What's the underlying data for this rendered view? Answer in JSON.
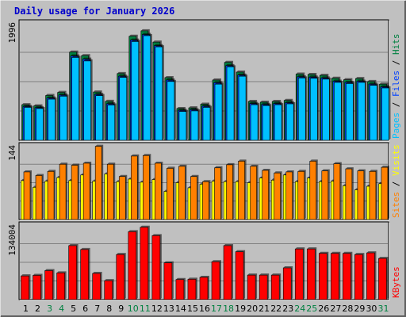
{
  "chart_data": {
    "type": "bar",
    "title": "Daily usage for January 2026",
    "categories": [
      "1",
      "2",
      "3",
      "4",
      "5",
      "6",
      "7",
      "8",
      "9",
      "10",
      "11",
      "12",
      "13",
      "14",
      "15",
      "16",
      "17",
      "18",
      "19",
      "20",
      "21",
      "22",
      "23",
      "24",
      "25",
      "26",
      "27",
      "28",
      "29",
      "30",
      "31"
    ],
    "weekend_days": [
      "3",
      "4",
      "10",
      "11",
      "17",
      "18",
      "24",
      "25",
      "31"
    ],
    "colors": {
      "hits": "#008040",
      "files": "#0040ff",
      "pages": "#00c0ff",
      "visits": "#ffff00",
      "sites": "#ff8000",
      "kbytes": "#ff0000",
      "weekday_label": "#000000",
      "weekend_label": "#008040",
      "plot_background": "#c0c0c0",
      "frame_background": "#c0c0c0",
      "gridline": "#808080",
      "title": "#0000cc"
    },
    "panels": [
      {
        "id": "usage",
        "max_label": "1996",
        "ylim": [
          0,
          1996
        ],
        "series": [
          {
            "name": "Hits",
            "values": [
              605,
              585,
              762,
              814,
              1500,
              1440,
              821,
              662,
              1135,
              1770,
              1862,
              1670,
              1066,
              540,
              551,
              614,
              1025,
              1325,
              1160,
              660,
              648,
              660,
              678,
              1126,
              1120,
              1105,
              1055,
              1030,
              1050,
              1000,
              955
            ]
          },
          {
            "name": "Files",
            "values": [
              575,
              555,
              720,
              770,
              1435,
              1380,
              780,
              622,
              1090,
              1705,
              1800,
              1610,
              1025,
              510,
              520,
              580,
              980,
              1270,
              1110,
              625,
              610,
              625,
              640,
              1080,
              1075,
              1060,
              1005,
              985,
              1005,
              955,
              910
            ]
          },
          {
            "name": "Pages",
            "values": [
              560,
              540,
              700,
              750,
              1410,
              1350,
              760,
              600,
              1070,
              1680,
              1780,
              1590,
              1000,
              490,
              500,
              560,
              955,
              1250,
              1090,
              605,
              590,
              605,
              620,
              1060,
              1055,
              1040,
              985,
              965,
              985,
              935,
              890
            ]
          }
        ],
        "legend": [
          "Pages",
          "Files",
          "Hits"
        ],
        "legend_colors": [
          "#00c0ff",
          "#0040ff",
          "#008040"
        ]
      },
      {
        "id": "visitors",
        "max_label": "144",
        "ylim": [
          0,
          144
        ],
        "series": [
          {
            "name": "Visits",
            "values": [
              76,
              63,
              75,
              82,
              76,
              87,
              75,
              89,
              74,
              79,
              73,
              78,
              55,
              72,
              62,
              69,
              75,
              74,
              74,
              72,
              81,
              77,
              87,
              74,
              81,
              74,
              75,
              66,
              58,
              65,
              70
            ]
          },
          {
            "name": "Sites",
            "values": [
              93,
              86,
              94,
              108,
              106,
              110,
              143,
              108,
              84,
              124,
              125,
              110,
              100,
              104,
              84,
              74,
              101,
              107,
              114,
              104,
              96,
              91,
              93,
              94,
              114,
              95,
              109,
              99,
              95,
              94,
              102
            ]
          }
        ],
        "legend": [
          "Sites",
          "Visits"
        ],
        "legend_colors": [
          "#ff8000",
          "#ffff00"
        ]
      },
      {
        "id": "kbytes",
        "max_label": "134004",
        "ylim": [
          0,
          134004
        ],
        "series": [
          {
            "name": "KBytes",
            "values": [
              42500,
              43500,
              52000,
              48000,
              97000,
              90000,
              47000,
              34000,
              81000,
              122000,
              130000,
              115000,
              66000,
              36000,
              36500,
              40000,
              68000,
              97000,
              86000,
              44000,
              44000,
              44000,
              57000,
              91000,
              91000,
              83000,
              83000,
              83000,
              81000,
              84000,
              74000
            ]
          }
        ],
        "legend": [
          "KBytes"
        ],
        "legend_colors": [
          "#ff0000"
        ]
      }
    ]
  }
}
